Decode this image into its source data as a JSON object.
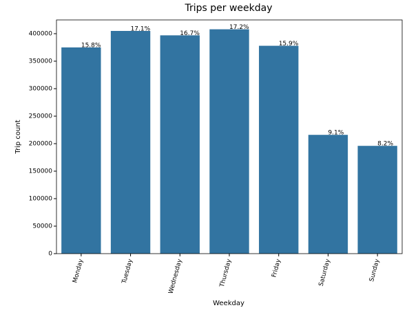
{
  "chart_data": {
    "type": "bar",
    "title": "Trips per weekday",
    "x_label": "Weekday",
    "y_label": "Trip count",
    "categories": [
      "Monday",
      "Tuesday",
      "Wednesday",
      "Thursday",
      "Friday",
      "Saturday",
      "Sunday"
    ],
    "values": [
      375000,
      405000,
      397000,
      408000,
      378000,
      216000,
      196000
    ],
    "annotations": [
      {
        "value": 15.8,
        "label": "15.8%"
      },
      {
        "value": 17.1,
        "label": "17.1%"
      },
      {
        "value": 16.7,
        "label": "16.7%"
      },
      {
        "value": 17.2,
        "label": "17.2%"
      },
      {
        "value": 15.9,
        "label": "15.9%"
      },
      {
        "value": 9.1,
        "label": "9.1%"
      },
      {
        "value": 8.2,
        "label": "8.2%"
      }
    ],
    "color": "#3274a1",
    "ylim": [
      0,
      425000
    ],
    "yticks": [
      0,
      50000,
      100000,
      150000,
      200000,
      250000,
      300000,
      350000,
      400000
    ],
    "grid": false
  }
}
